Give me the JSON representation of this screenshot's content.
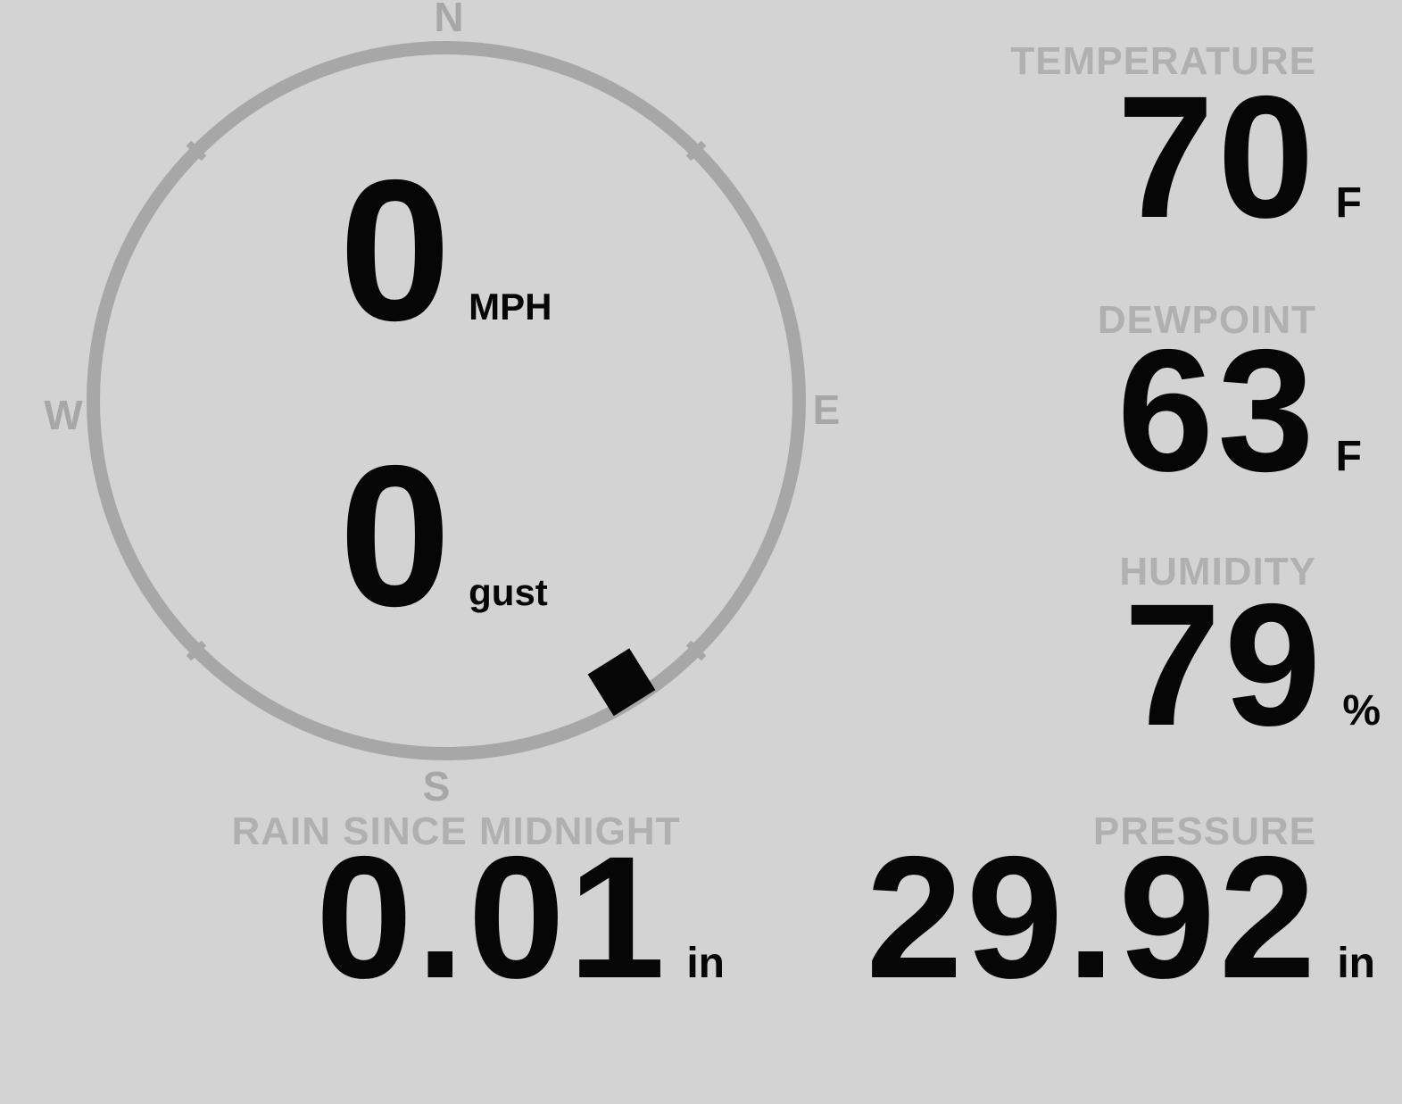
{
  "colors": {
    "background": "#d3d3d3",
    "gauge": "#a7a7a7",
    "label": "#b0b0b0",
    "value": "#060606"
  },
  "wind": {
    "compass": {
      "n": "N",
      "e": "E",
      "s": "S",
      "w": "W"
    },
    "direction_degrees": 148,
    "speed": {
      "value": "0",
      "unit": "MPH"
    },
    "gust": {
      "value": "0",
      "unit": "gust"
    }
  },
  "stats": {
    "temperature": {
      "label": "TEMPERATURE",
      "value": "70",
      "unit": "F"
    },
    "dewpoint": {
      "label": "DEWPOINT",
      "value": "63",
      "unit": "F"
    },
    "humidity": {
      "label": "HUMIDITY",
      "value": "79",
      "unit": "%"
    },
    "rain": {
      "label": "RAIN SINCE MIDNIGHT",
      "value": "0.01",
      "unit": "in"
    },
    "pressure": {
      "label": "PRESSURE",
      "value": "29.92",
      "unit": "in"
    }
  }
}
